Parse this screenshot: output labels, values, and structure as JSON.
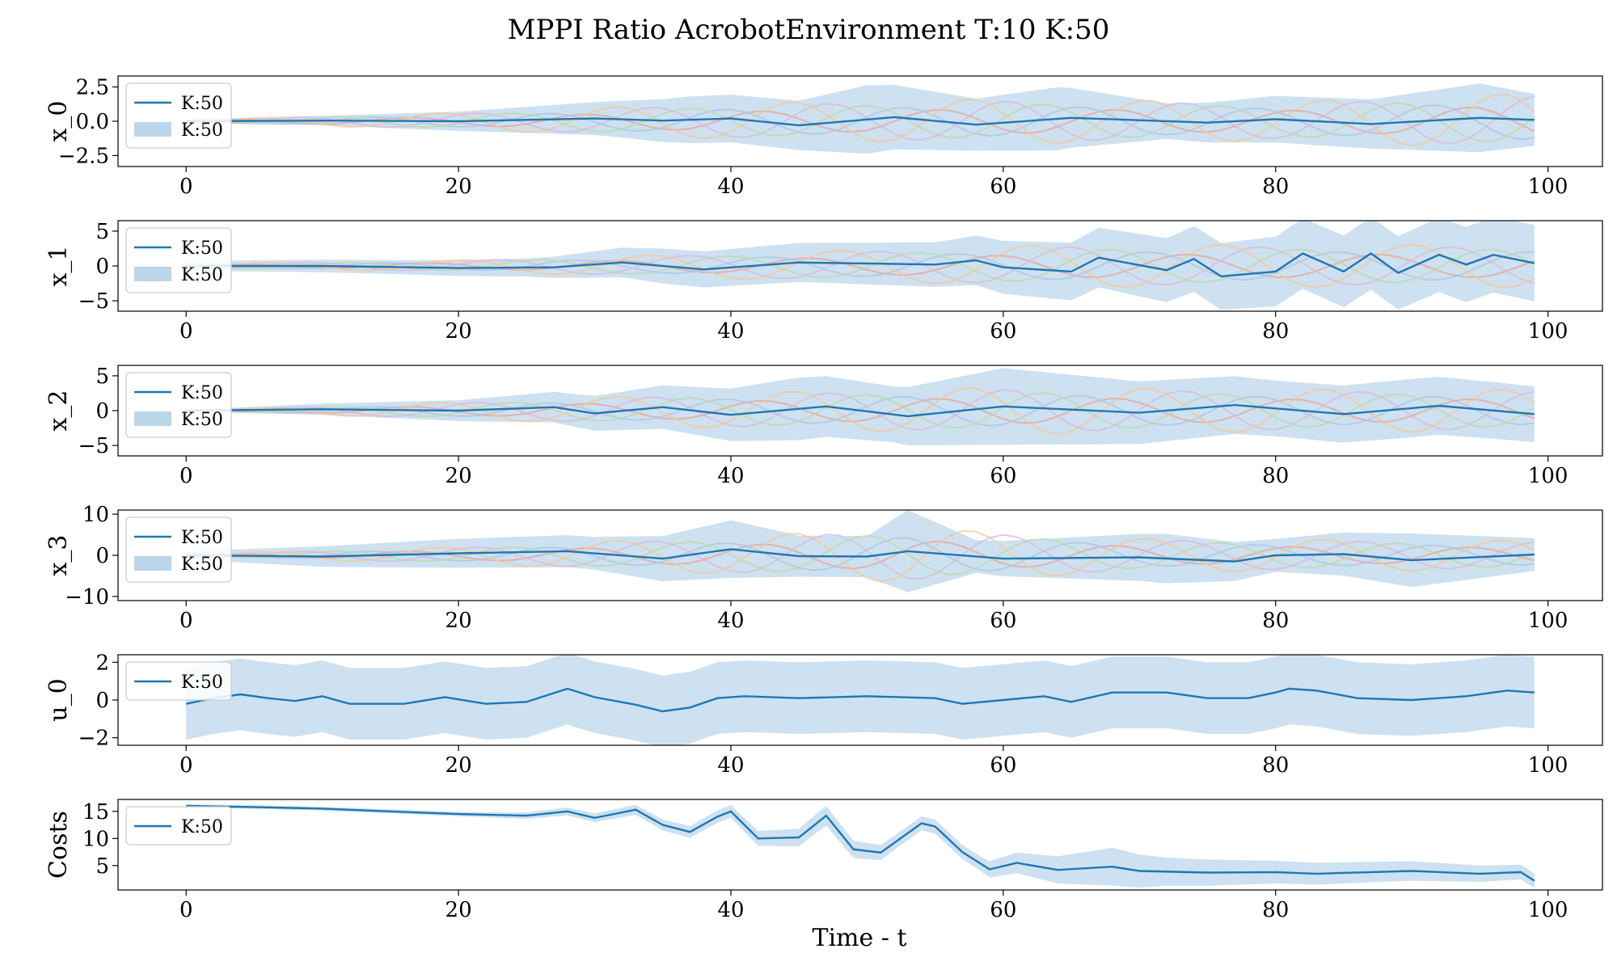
{
  "figure": {
    "title": "MPPI Ratio AcrobotEnvironment T:10 K:50",
    "xlabel": "Time - t"
  },
  "colors": {
    "mean": "#1f77b4",
    "band": "#a6c8e3",
    "traj": [
      "#e8a29a",
      "#a9c6e6",
      "#b8dba8",
      "#d8b8de",
      "#f3c79a"
    ]
  },
  "chart_data": [
    {
      "type": "line",
      "ylabel": "x_0",
      "xlim": [
        -5,
        104
      ],
      "ylim": [
        -3.3,
        3.3
      ],
      "yticks": [
        -2.5,
        0.0,
        2.5
      ],
      "ytick_labels": [
        "−2.5",
        "0.0",
        "2.5"
      ],
      "xticks": [
        0,
        20,
        40,
        60,
        80,
        100
      ],
      "xtick_labels": [
        "0",
        "20",
        "40",
        "60",
        "80",
        "100"
      ],
      "legend": {
        "placement": "upper-left",
        "entries": [
          {
            "kind": "line",
            "label": "K:50"
          },
          {
            "kind": "band",
            "label": "K:50"
          }
        ]
      },
      "mean": {
        "points": [
          [
            0,
            0
          ],
          [
            10,
            0.05
          ],
          [
            20,
            0
          ],
          [
            30,
            0.2
          ],
          [
            35,
            0.05
          ],
          [
            40,
            0.2
          ],
          [
            45,
            -0.3
          ],
          [
            52,
            0.3
          ],
          [
            58,
            -0.25
          ],
          [
            65,
            0.25
          ],
          [
            75,
            -0.1
          ],
          [
            80,
            0.15
          ],
          [
            87,
            -0.2
          ],
          [
            95,
            0.25
          ],
          [
            99,
            0.1
          ]
        ]
      },
      "band": {
        "points": [
          [
            0,
            0.15
          ],
          [
            10,
            0.35
          ],
          [
            20,
            0.7
          ],
          [
            30,
            1.2
          ],
          [
            37,
            1.7
          ],
          [
            45,
            1.8
          ],
          [
            50,
            2.5
          ],
          [
            58,
            1.9
          ],
          [
            64,
            2.3
          ],
          [
            72,
            1.3
          ],
          [
            80,
            1.7
          ],
          [
            87,
            1.8
          ],
          [
            95,
            2.5
          ],
          [
            99,
            1.9
          ]
        ]
      },
      "trajectories": {
        "amplitude_points": [
          [
            0,
            0.1
          ],
          [
            20,
            0.6
          ],
          [
            40,
            1.3
          ],
          [
            60,
            1.6
          ],
          [
            80,
            1.4
          ],
          [
            99,
            2.0
          ]
        ],
        "period": 13
      }
    },
    {
      "type": "line",
      "ylabel": "x_1",
      "xlim": [
        -5,
        104
      ],
      "ylim": [
        -6.5,
        6.5
      ],
      "yticks": [
        -5,
        0,
        5
      ],
      "ytick_labels": [
        "−5",
        "0",
        "5"
      ],
      "xticks": [
        0,
        20,
        40,
        60,
        80,
        100
      ],
      "xtick_labels": [
        "0",
        "20",
        "40",
        "60",
        "80",
        "100"
      ],
      "legend": {
        "placement": "upper-left",
        "entries": [
          {
            "kind": "line",
            "label": "K:50"
          },
          {
            "kind": "band",
            "label": "K:50"
          }
        ]
      },
      "mean": {
        "points": [
          [
            0,
            0
          ],
          [
            10,
            0
          ],
          [
            20,
            -0.3
          ],
          [
            27,
            -0.2
          ],
          [
            32,
            0.5
          ],
          [
            38,
            -0.5
          ],
          [
            45,
            0.5
          ],
          [
            55,
            0.2
          ],
          [
            58,
            0.8
          ],
          [
            60,
            -0.2
          ],
          [
            65,
            -0.8
          ],
          [
            67,
            1.2
          ],
          [
            72,
            -0.6
          ],
          [
            74,
            1
          ],
          [
            76,
            -1.5
          ],
          [
            80,
            -0.8
          ],
          [
            82,
            1.8
          ],
          [
            85,
            -0.8
          ],
          [
            87,
            1.8
          ],
          [
            89,
            -1
          ],
          [
            92,
            1.6
          ],
          [
            94,
            0.2
          ],
          [
            96,
            1.6
          ],
          [
            99,
            0.4
          ]
        ]
      },
      "band": {
        "points": [
          [
            0,
            0.7
          ],
          [
            15,
            1
          ],
          [
            25,
            1.3
          ],
          [
            35,
            2.5
          ],
          [
            45,
            2.8
          ],
          [
            55,
            3.2
          ],
          [
            60,
            3.8
          ],
          [
            70,
            4.5
          ],
          [
            80,
            5
          ],
          [
            90,
            5.3
          ],
          [
            99,
            5.5
          ]
        ]
      },
      "trajectories": {
        "amplitude_points": [
          [
            0,
            0.3
          ],
          [
            20,
            0.8
          ],
          [
            40,
            1.8
          ],
          [
            55,
            2.5
          ],
          [
            65,
            3
          ],
          [
            99,
            3
          ]
        ],
        "period": 14
      }
    },
    {
      "type": "line",
      "ylabel": "x_2",
      "xlim": [
        -5,
        104
      ],
      "ylim": [
        -6.5,
        6.5
      ],
      "yticks": [
        -5,
        0,
        5
      ],
      "ytick_labels": [
        "−5",
        "0",
        "5"
      ],
      "xticks": [
        0,
        20,
        40,
        60,
        80,
        100
      ],
      "xtick_labels": [
        "0",
        "20",
        "40",
        "60",
        "80",
        "100"
      ],
      "legend": {
        "placement": "upper-left",
        "entries": [
          {
            "kind": "line",
            "label": "K:50"
          },
          {
            "kind": "band",
            "label": "K:50"
          }
        ]
      },
      "mean": {
        "points": [
          [
            0,
            0
          ],
          [
            10,
            0.2
          ],
          [
            20,
            0
          ],
          [
            27,
            0.5
          ],
          [
            30,
            -0.4
          ],
          [
            35,
            0.5
          ],
          [
            40,
            -0.6
          ],
          [
            47,
            0.6
          ],
          [
            53,
            -0.8
          ],
          [
            60,
            0.6
          ],
          [
            70,
            -0.3
          ],
          [
            77,
            0.8
          ],
          [
            85,
            -0.5
          ],
          [
            92,
            0.7
          ],
          [
            99,
            -0.5
          ]
        ]
      },
      "band": {
        "points": [
          [
            0,
            0.1
          ],
          [
            10,
            0.8
          ],
          [
            20,
            1.5
          ],
          [
            30,
            2.5
          ],
          [
            38,
            3.5
          ],
          [
            45,
            4.5
          ],
          [
            52,
            4
          ],
          [
            60,
            5.5
          ],
          [
            70,
            4.5
          ],
          [
            80,
            4
          ],
          [
            90,
            4.2
          ],
          [
            99,
            4
          ]
        ]
      },
      "trajectories": {
        "amplitude_points": [
          [
            0,
            0.1
          ],
          [
            20,
            1.2
          ],
          [
            40,
            2.5
          ],
          [
            60,
            3.3
          ],
          [
            80,
            3
          ],
          [
            99,
            3
          ]
        ],
        "period": 13
      }
    },
    {
      "type": "line",
      "ylabel": "x_3",
      "xlim": [
        -5,
        104
      ],
      "ylim": [
        -11,
        11
      ],
      "yticks": [
        -10,
        0,
        10
      ],
      "ytick_labels": [
        "−10",
        "0",
        "10"
      ],
      "xticks": [
        0,
        20,
        40,
        60,
        80,
        100
      ],
      "xtick_labels": [
        "0",
        "20",
        "40",
        "60",
        "80",
        "100"
      ],
      "legend": {
        "placement": "upper-left",
        "entries": [
          {
            "kind": "line",
            "label": "K:50"
          },
          {
            "kind": "band",
            "label": "K:50"
          }
        ]
      },
      "mean": {
        "points": [
          [
            0,
            0
          ],
          [
            10,
            -0.3
          ],
          [
            20,
            0.5
          ],
          [
            28,
            1
          ],
          [
            35,
            -0.8
          ],
          [
            40,
            1.5
          ],
          [
            45,
            -0.2
          ],
          [
            50,
            -0.3
          ],
          [
            53,
            1
          ],
          [
            60,
            -0.8
          ],
          [
            70,
            -0.5
          ],
          [
            77,
            -1.5
          ],
          [
            80,
            0
          ],
          [
            85,
            0.3
          ],
          [
            90,
            -1.2
          ],
          [
            99,
            0.2
          ]
        ]
      },
      "band": {
        "points": [
          [
            0,
            1
          ],
          [
            10,
            2.5
          ],
          [
            20,
            3.5
          ],
          [
            30,
            4
          ],
          [
            40,
            7
          ],
          [
            45,
            5
          ],
          [
            50,
            5
          ],
          [
            53,
            10
          ],
          [
            58,
            4
          ],
          [
            65,
            5
          ],
          [
            72,
            6
          ],
          [
            80,
            4
          ],
          [
            90,
            6.5
          ],
          [
            99,
            4
          ]
        ]
      },
      "trajectories": {
        "amplitude_points": [
          [
            0,
            0.3
          ],
          [
            20,
            2
          ],
          [
            40,
            4.5
          ],
          [
            53,
            6.5
          ],
          [
            70,
            4
          ],
          [
            99,
            3.5
          ]
        ],
        "period": 13
      }
    },
    {
      "type": "line",
      "ylabel": "u_0",
      "xlim": [
        -5,
        104
      ],
      "ylim": [
        -2.4,
        2.4
      ],
      "yticks": [
        -2,
        0,
        2
      ],
      "ytick_labels": [
        "−2",
        "0",
        "2"
      ],
      "xticks": [
        0,
        20,
        40,
        60,
        80,
        100
      ],
      "xtick_labels": [
        "0",
        "20",
        "40",
        "60",
        "80",
        "100"
      ],
      "legend": {
        "placement": "upper-left",
        "entries": [
          {
            "kind": "line",
            "label": "K:50"
          }
        ]
      },
      "mean": {
        "points": [
          [
            0,
            -0.2
          ],
          [
            2,
            0.1
          ],
          [
            4,
            0.3
          ],
          [
            6,
            0.1
          ],
          [
            8,
            -0.05
          ],
          [
            10,
            0.2
          ],
          [
            12,
            -0.2
          ],
          [
            16,
            -0.2
          ],
          [
            19,
            0.15
          ],
          [
            22,
            -0.2
          ],
          [
            25,
            -0.1
          ],
          [
            28,
            0.6
          ],
          [
            30,
            0.15
          ],
          [
            33,
            -0.25
          ],
          [
            35,
            -0.6
          ],
          [
            37,
            -0.4
          ],
          [
            39,
            0.1
          ],
          [
            41,
            0.2
          ],
          [
            45,
            0.1
          ],
          [
            50,
            0.2
          ],
          [
            55,
            0.1
          ],
          [
            57,
            -0.2
          ],
          [
            60,
            0
          ],
          [
            63,
            0.2
          ],
          [
            65,
            -0.1
          ],
          [
            68,
            0.4
          ],
          [
            72,
            0.4
          ],
          [
            75,
            0.1
          ],
          [
            78,
            0.1
          ],
          [
            80,
            0.4
          ],
          [
            81,
            0.6
          ],
          [
            83,
            0.5
          ],
          [
            86,
            0.1
          ],
          [
            90,
            0
          ],
          [
            94,
            0.2
          ],
          [
            97,
            0.5
          ],
          [
            99,
            0.4
          ]
        ]
      },
      "band": {
        "points": [
          [
            0,
            1.9
          ],
          [
            50,
            1.9
          ],
          [
            99,
            1.9
          ]
        ]
      },
      "trajectories": null
    },
    {
      "type": "line",
      "ylabel": "Costs",
      "xlim": [
        -5,
        104
      ],
      "ylim": [
        0.5,
        17.2
      ],
      "yticks": [
        5,
        10,
        15
      ],
      "ytick_labels": [
        "5",
        "10",
        "15"
      ],
      "xticks": [
        0,
        20,
        40,
        60,
        80,
        100
      ],
      "xtick_labels": [
        "0",
        "20",
        "40",
        "60",
        "80",
        "100"
      ],
      "legend": {
        "placement": "upper-left",
        "entries": [
          {
            "kind": "line",
            "label": "K:50"
          }
        ]
      },
      "mean": {
        "points": [
          [
            0,
            16
          ],
          [
            5,
            15.8
          ],
          [
            10,
            15.5
          ],
          [
            15,
            15
          ],
          [
            20,
            14.5
          ],
          [
            25,
            14.2
          ],
          [
            28,
            15
          ],
          [
            30,
            13.8
          ],
          [
            32,
            14.8
          ],
          [
            33,
            15.3
          ],
          [
            35,
            12.5
          ],
          [
            37,
            11.2
          ],
          [
            39,
            14
          ],
          [
            40,
            15
          ],
          [
            42,
            10
          ],
          [
            45,
            10.2
          ],
          [
            47,
            14.2
          ],
          [
            49,
            8
          ],
          [
            51,
            7.4
          ],
          [
            54,
            12.8
          ],
          [
            55,
            12.2
          ],
          [
            57,
            7.5
          ],
          [
            59,
            4.3
          ],
          [
            61,
            5.5
          ],
          [
            64,
            4.2
          ],
          [
            68,
            4.8
          ],
          [
            70,
            4
          ],
          [
            75,
            3.7
          ],
          [
            80,
            3.8
          ],
          [
            83,
            3.5
          ],
          [
            87,
            3.8
          ],
          [
            90,
            4
          ],
          [
            95,
            3.5
          ],
          [
            98,
            3.8
          ],
          [
            99,
            2.2
          ]
        ]
      },
      "band": {
        "points": [
          [
            0,
            0.3
          ],
          [
            20,
            0.4
          ],
          [
            30,
            0.8
          ],
          [
            40,
            1.2
          ],
          [
            47,
            1.8
          ],
          [
            52,
            1.3
          ],
          [
            58,
            1.3
          ],
          [
            64,
            2.5
          ],
          [
            68,
            3.5
          ],
          [
            72,
            2.6
          ],
          [
            80,
            2.1
          ],
          [
            90,
            1.8
          ],
          [
            99,
            1.3
          ]
        ]
      },
      "trajectories": null
    }
  ]
}
